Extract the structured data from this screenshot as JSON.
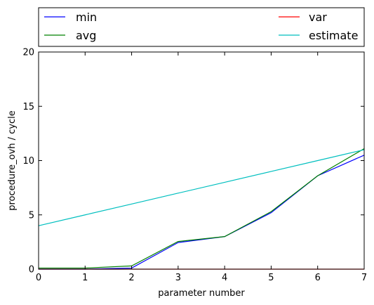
{
  "chart_data": {
    "type": "line",
    "x": [
      0,
      1,
      2,
      3,
      4,
      5,
      6,
      7
    ],
    "series": [
      {
        "name": "min",
        "color": "#0000ff",
        "values": [
          0.0,
          0.0,
          0.1,
          2.45,
          3.0,
          5.2,
          8.6,
          10.5
        ]
      },
      {
        "name": "avg",
        "color": "#008000",
        "values": [
          0.1,
          0.1,
          0.3,
          2.55,
          3.0,
          5.3,
          8.6,
          11.1
        ]
      },
      {
        "name": "var",
        "color": "#ff0000",
        "values": [
          0.0,
          0.0,
          0.0,
          0.0,
          0.0,
          0.0,
          0.0,
          0.0
        ]
      },
      {
        "name": "estimate",
        "color": "#00bfbf",
        "values": [
          4,
          5,
          6,
          7,
          8,
          9,
          10,
          11
        ]
      }
    ],
    "xlabel": "parameter number",
    "ylabel": "procedure_ovh / cycle",
    "xlim": [
      0,
      7
    ],
    "ylim": [
      0,
      20
    ],
    "xticks": [
      "0",
      "1",
      "2",
      "3",
      "4",
      "5",
      "6",
      "7"
    ],
    "yticks": [
      "0",
      "5",
      "10",
      "15",
      "20"
    ],
    "grid": false,
    "legend": "top"
  }
}
